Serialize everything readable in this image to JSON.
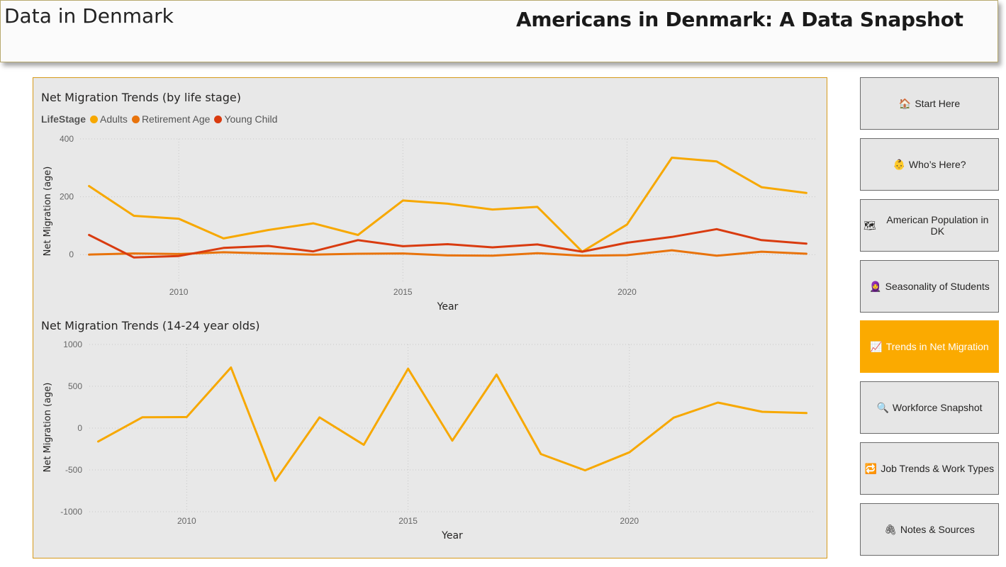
{
  "header": {
    "left_title": "Data in Denmark",
    "main_title": "Americans in Denmark: A Data Snapshot"
  },
  "nav": [
    {
      "icon": "🏠",
      "icon_name": "house-icon",
      "label": "Start Here",
      "active": false
    },
    {
      "icon": "👶",
      "icon_name": "baby-icon",
      "label": "Who’s Here?",
      "active": false
    },
    {
      "icon": "🗺",
      "icon_name": "map-icon",
      "label": "American Population in DK",
      "active": false
    },
    {
      "icon": "🧕",
      "icon_name": "student-icon",
      "label": "Seasonality of Students",
      "active": false
    },
    {
      "icon": "📈",
      "icon_name": "chart-increasing-icon",
      "label": "Trends in Net Migration",
      "active": true
    },
    {
      "icon": "🔍",
      "icon_name": "magnifier-icon",
      "label": "Workforce Snapshot",
      "active": false
    },
    {
      "icon": "🔁",
      "icon_name": "repeat-icon",
      "label": "Job Trends & Work Types",
      "active": false
    },
    {
      "icon": "🖇",
      "icon_name": "paperclip-icon",
      "label": "Notes & Sources",
      "active": false
    }
  ],
  "colors": {
    "adults": "#f7a800",
    "retirement": "#e8730c",
    "young_child": "#d93b0f",
    "active_button": "#fbaa00"
  },
  "chart_data": [
    {
      "type": "line",
      "title": "Net Migration Trends (by life stage)",
      "legend_title": "LifeStage",
      "xlabel": "Year",
      "ylabel": "Net Migration (age)",
      "x": [
        2008,
        2009,
        2010,
        2011,
        2012,
        2013,
        2014,
        2015,
        2016,
        2017,
        2018,
        2019,
        2020,
        2021,
        2022,
        2023,
        2024
      ],
      "x_ticks": [
        "2010",
        "2015",
        "2020"
      ],
      "y_ticks": [
        "0",
        "200",
        "400"
      ],
      "ylim": [
        -100,
        400
      ],
      "grid": true,
      "legend_position": "top-left",
      "series": [
        {
          "name": "Adults",
          "color": "#f7a800",
          "values": [
            237,
            134,
            124,
            56,
            85,
            108,
            68,
            187,
            176,
            156,
            165,
            10,
            104,
            335,
            322,
            233,
            213
          ]
        },
        {
          "name": "Retirement Age",
          "color": "#e8730c",
          "values": [
            0,
            4,
            2,
            8,
            4,
            0,
            3,
            4,
            -3,
            -4,
            5,
            -4,
            -2,
            15,
            -4,
            10,
            3
          ]
        },
        {
          "name": "Young Child",
          "color": "#d93b0f",
          "values": [
            68,
            -10,
            -5,
            23,
            30,
            11,
            50,
            29,
            36,
            25,
            35,
            10,
            41,
            61,
            88,
            50,
            38
          ]
        }
      ]
    },
    {
      "type": "line",
      "title": "Net Migration Trends (14-24 year olds)",
      "xlabel": "Year",
      "ylabel": "Net Migration (age)",
      "x": [
        2008,
        2009,
        2010,
        2011,
        2012,
        2013,
        2014,
        2015,
        2016,
        2017,
        2018,
        2019,
        2020,
        2021,
        2022,
        2023,
        2024
      ],
      "x_ticks": [
        "2010",
        "2015",
        "2020"
      ],
      "y_ticks": [
        "1000",
        "500",
        "0",
        "-500",
        "-1000"
      ],
      "ylim": [
        -1000,
        1000
      ],
      "grid": true,
      "series": [
        {
          "name": "",
          "color": "#f7a800",
          "values": [
            -160,
            130,
            132,
            725,
            -630,
            128,
            -200,
            710,
            -150,
            640,
            -310,
            -505,
            -290,
            125,
            305,
            195,
            180
          ]
        }
      ]
    }
  ]
}
